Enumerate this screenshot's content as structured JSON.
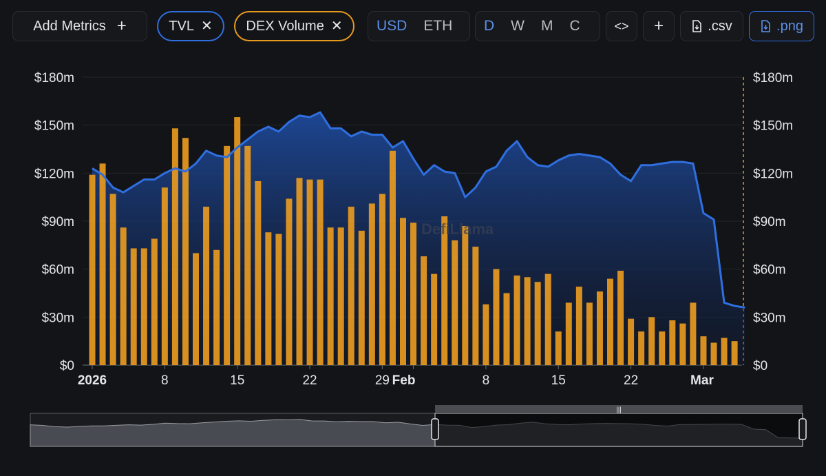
{
  "toolbar": {
    "add_metrics_label": "Add Metrics",
    "add_icon": "plus-icon",
    "metrics": [
      {
        "label": "TVL",
        "color": "#2f6fe0"
      },
      {
        "label": "DEX Volume",
        "color": "#e89a1f"
      }
    ],
    "currency_options": [
      "USD",
      "ETH"
    ],
    "currency_selected": "USD",
    "period_options": [
      "D",
      "W",
      "M",
      "C"
    ],
    "period_selected": "D",
    "embed_icon": "code-icon",
    "plus_icon": "plus-icon",
    "csv_label": ".csv",
    "png_label": ".png",
    "download_icon": "download-icon"
  },
  "watermark": "DefiLlama",
  "chart_data": {
    "type": "bar",
    "x": [
      "2026-01-01",
      "2026-01-02",
      "2026-01-03",
      "2026-01-04",
      "2026-01-05",
      "2026-01-06",
      "2026-01-07",
      "2026-01-08",
      "2026-01-09",
      "2026-01-10",
      "2026-01-11",
      "2026-01-12",
      "2026-01-13",
      "2026-01-14",
      "2026-01-15",
      "2026-01-16",
      "2026-01-17",
      "2026-01-18",
      "2026-01-19",
      "2026-01-20",
      "2026-01-21",
      "2026-01-22",
      "2026-01-23",
      "2026-01-24",
      "2026-01-25",
      "2026-01-26",
      "2026-01-27",
      "2026-01-28",
      "2026-01-29",
      "2026-01-30",
      "2026-01-31",
      "2026-02-01",
      "2026-02-02",
      "2026-02-03",
      "2026-02-04",
      "2026-02-05",
      "2026-02-06",
      "2026-02-07",
      "2026-02-08",
      "2026-02-09",
      "2026-02-10",
      "2026-02-11",
      "2026-02-12",
      "2026-02-13",
      "2026-02-14",
      "2026-02-15",
      "2026-02-16",
      "2026-02-17",
      "2026-02-18",
      "2026-02-19",
      "2026-02-20",
      "2026-02-21",
      "2026-02-22",
      "2026-02-23",
      "2026-02-24",
      "2026-02-25",
      "2026-02-26",
      "2026-02-27",
      "2026-02-28",
      "2026-03-01",
      "2026-03-02",
      "2026-03-03",
      "2026-03-04",
      "2026-03-05"
    ],
    "series": [
      {
        "name": "TVL",
        "type": "area",
        "color": "#2f6fe0",
        "values": [
          123,
          119,
          111,
          108,
          112,
          116,
          116,
          120,
          123,
          121,
          126,
          134,
          131,
          130,
          136,
          141,
          146,
          149,
          146,
          152,
          156,
          155,
          158,
          148,
          148,
          143,
          146,
          144,
          144,
          136,
          140,
          129,
          119,
          125,
          121,
          120,
          105,
          111,
          121,
          124,
          134,
          140,
          130,
          125,
          124,
          128,
          131,
          132,
          131,
          130,
          126,
          119,
          115,
          125,
          125,
          126,
          127,
          127,
          126,
          95,
          91,
          39,
          37,
          36
        ]
      },
      {
        "name": "DEX Volume",
        "type": "bar",
        "color": "#e89a1f",
        "values": [
          119,
          126,
          107,
          86,
          73,
          73,
          79,
          111,
          148,
          142,
          70,
          99,
          72,
          137,
          155,
          137,
          115,
          83,
          82,
          104,
          117,
          116,
          116,
          86,
          86,
          99,
          84,
          101,
          107,
          134,
          92,
          89,
          68,
          57,
          93,
          78,
          87,
          74,
          38,
          60,
          45,
          56,
          55,
          52,
          57,
          21,
          39,
          49,
          39,
          46,
          54,
          59,
          29,
          21,
          30,
          21,
          28,
          26,
          39,
          18,
          14,
          17,
          15,
          0
        ]
      }
    ],
    "x_tick_labels": [
      "2026",
      "8",
      "15",
      "22",
      "29",
      "Feb",
      "8",
      "15",
      "22",
      "Mar"
    ],
    "y_tick_labels": [
      "$0",
      "$30m",
      "$60m",
      "$90m",
      "$120m",
      "$150m",
      "$180m"
    ],
    "ylim": [
      0,
      180
    ],
    "grid": true
  }
}
